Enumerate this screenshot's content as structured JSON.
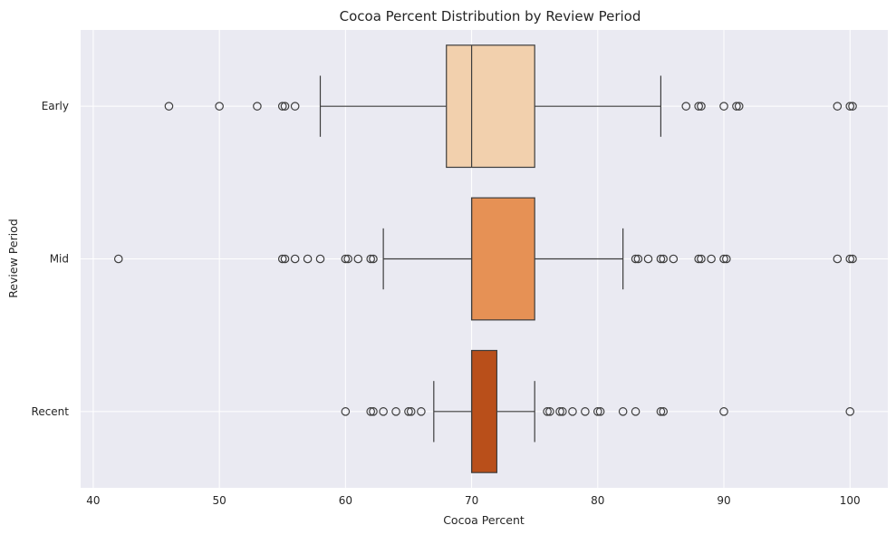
{
  "chart_data": {
    "type": "boxplot",
    "orientation": "horizontal",
    "title": "Cocoa Percent Distribution by Review Period",
    "xlabel": "Cocoa Percent",
    "ylabel": "Review Period",
    "xlim": [
      39,
      103
    ],
    "xticks": [
      40,
      50,
      60,
      70,
      80,
      90,
      100
    ],
    "grid": true,
    "categories": [
      "Early",
      "Mid",
      "Recent"
    ],
    "series": [
      {
        "name": "Early",
        "color": "#f2d0ad",
        "whisker_low": 58,
        "q1": 68,
        "median": 70,
        "q3": 75,
        "whisker_high": 85,
        "outliers": [
          46,
          50,
          53,
          55,
          55.2,
          56,
          87,
          88,
          88.2,
          90,
          91,
          91.2,
          99,
          100,
          100.2
        ]
      },
      {
        "name": "Mid",
        "color": "#e69155",
        "whisker_low": 63,
        "q1": 70,
        "median": 70,
        "q3": 75,
        "whisker_high": 82,
        "outliers": [
          42,
          55,
          55.2,
          56,
          57,
          58,
          60,
          60.2,
          61,
          62,
          62.2,
          83,
          83.2,
          84,
          85,
          85.2,
          86,
          88,
          88.2,
          89,
          90,
          90.2,
          99,
          100,
          100.2
        ]
      },
      {
        "name": "Recent",
        "color": "#b94f1a",
        "whisker_low": 67,
        "q1": 70,
        "median": 70,
        "q3": 72,
        "whisker_high": 75,
        "outliers": [
          60,
          62,
          62.2,
          63,
          64,
          65,
          65.2,
          66,
          76,
          76.2,
          77,
          77.2,
          78,
          79,
          80,
          80.2,
          82,
          83,
          85,
          85.2,
          90,
          100
        ]
      }
    ]
  }
}
